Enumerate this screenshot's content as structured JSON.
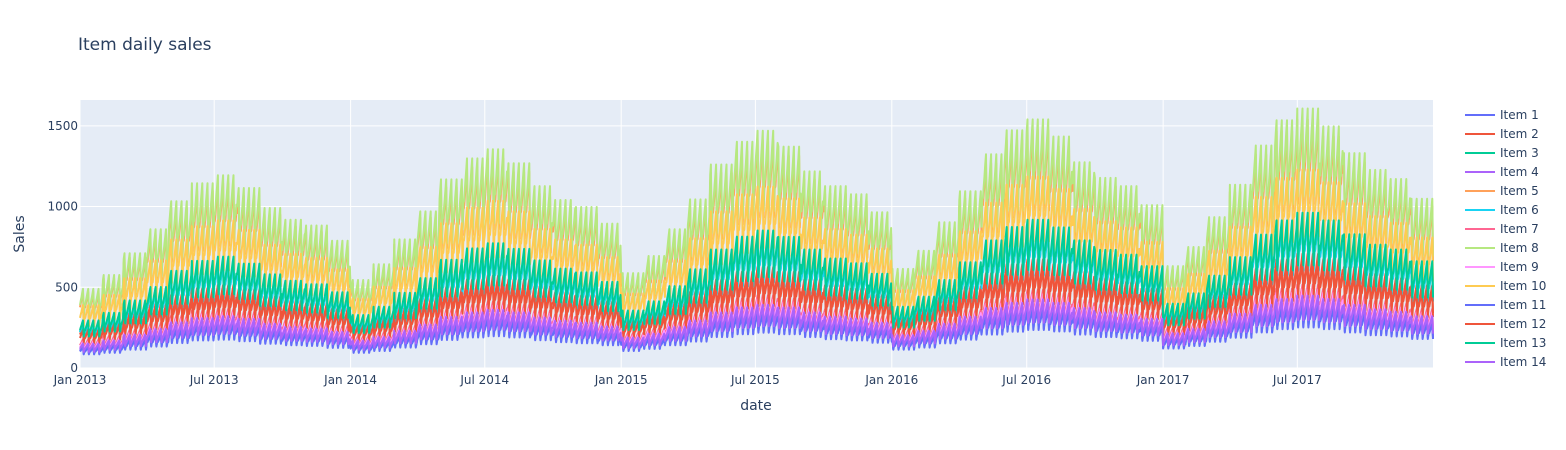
{
  "chart_data": {
    "type": "line",
    "title": "Item daily sales",
    "xlabel": "date",
    "ylabel": "Sales",
    "xlim": [
      "2013-01-01",
      "2017-12-31"
    ],
    "ylim": [
      0,
      1660
    ],
    "x_ticks": [
      "Jan 2013",
      "Jul 2013",
      "Jan 2014",
      "Jul 2014",
      "Jan 2015",
      "Jul 2015",
      "Jan 2016",
      "Jul 2016",
      "Jan 2017",
      "Jul 2017"
    ],
    "y_ticks": [
      0,
      500,
      1000,
      1500
    ],
    "grid": true,
    "legend_position": "right",
    "plot_background": "#e5ecf6",
    "weekly_pattern": [
      0.78,
      0.93,
      0.94,
      1.0,
      1.06,
      1.12,
      1.18
    ],
    "series": [
      {
        "name": "Item 1",
        "color": "#636efa",
        "values": [
          112,
          125,
          150,
          175,
          205,
          225,
          232,
          218,
          198,
          185,
          180,
          165,
          125,
          140,
          168,
          195,
          230,
          250,
          262,
          250,
          228,
          210,
          202,
          185,
          140,
          155,
          185,
          215,
          250,
          272,
          285,
          272,
          250,
          232,
          222,
          205,
          150,
          168,
          200,
          230,
          270,
          295,
          310,
          295,
          272,
          250,
          240,
          220,
          160,
          180,
          215,
          245,
          285,
          312,
          330,
          315,
          290,
          270,
          260,
          240
        ]
      },
      {
        "name": "Item 2",
        "color": "#ef553b",
        "values": [
          220,
          248,
          290,
          335,
          385,
          420,
          435,
          412,
          375,
          352,
          340,
          312,
          240,
          268,
          315,
          365,
          425,
          465,
          485,
          465,
          428,
          398,
          382,
          350,
          262,
          292,
          345,
          400,
          465,
          505,
          530,
          505,
          465,
          435,
          418,
          385,
          280,
          312,
          370,
          428,
          498,
          545,
          570,
          545,
          505,
          472,
          452,
          418,
          292,
          325,
          385,
          445,
          520,
          570,
          600,
          572,
          530,
          495,
          472,
          435
        ]
      },
      {
        "name": "Item 3",
        "color": "#00cc96",
        "values": [
          240,
          278,
          340,
          405,
          485,
          535,
          555,
          520,
          468,
          435,
          420,
          380,
          265,
          305,
          375,
          448,
          540,
          595,
          620,
          592,
          535,
          495,
          475,
          428,
          290,
          335,
          410,
          492,
          592,
          655,
          685,
          652,
          590,
          545,
          522,
          470,
          312,
          360,
          442,
          530,
          640,
          705,
          740,
          702,
          638,
          590,
          565,
          510,
          328,
          380,
          465,
          560,
          672,
          742,
          780,
          740,
          672,
          620,
          595,
          535
        ]
      },
      {
        "name": "Item 4",
        "color": "#ab63fa",
        "values": [
          120,
          135,
          162,
          190,
          222,
          242,
          252,
          238,
          215,
          200,
          195,
          178,
          135,
          152,
          180,
          210,
          248,
          270,
          282,
          270,
          245,
          228,
          218,
          200,
          150,
          168,
          200,
          232,
          272,
          295,
          310,
          295,
          270,
          250,
          240,
          220,
          162,
          182,
          215,
          250,
          292,
          318,
          335,
          318,
          292,
          270,
          258,
          238,
          172,
          192,
          228,
          265,
          310,
          338,
          355,
          338,
          310,
          285,
          272,
          250
        ]
      },
      {
        "name": "Item 5",
        "color": "#ffa15a",
        "values": [
          400,
          470,
          580,
          700,
          840,
          930,
          970,
          905,
          805,
          745,
          715,
          640,
          445,
          525,
          650,
          790,
          950,
          1055,
          1100,
          1030,
          915,
          845,
          810,
          725,
          480,
          565,
          700,
          850,
          1025,
          1140,
          1195,
          1115,
          990,
          915,
          875,
          785,
          500,
          590,
          735,
          890,
          1075,
          1195,
          1250,
          1165,
          1035,
          955,
          915,
          820,
          515,
          610,
          760,
          925,
          1120,
          1245,
          1305,
          1215,
          1080,
          995,
          950,
          850
        ]
      },
      {
        "name": "Item 6",
        "color": "#19d3f3",
        "values": [
          235,
          272,
          335,
          400,
          480,
          530,
          550,
          515,
          462,
          430,
          415,
          375,
          260,
          300,
          370,
          442,
          532,
          588,
          612,
          585,
          528,
          488,
          470,
          422,
          285,
          330,
          405,
          485,
          585,
          648,
          678,
          645,
          582,
          538,
          515,
          465,
          305,
          355,
          435,
          522,
          632,
          698,
          732,
          695,
          630,
          582,
          558,
          505,
          320,
          372,
          458,
          552,
          665,
          735,
          772,
          732,
          665,
          612,
          588,
          528
        ]
      },
      {
        "name": "Item 7",
        "color": "#ff6692",
        "values": [
          150,
          168,
          200,
          235,
          275,
          300,
          312,
          295,
          268,
          250,
          242,
          220,
          168,
          188,
          222,
          260,
          305,
          332,
          348,
          332,
          302,
          282,
          270,
          248,
          185,
          208,
          245,
          285,
          335,
          365,
          382,
          365,
          332,
          308,
          295,
          272,
          198,
          222,
          262,
          305,
          360,
          392,
          410,
          392,
          358,
          332,
          318,
          292,
          210,
          235,
          280,
          325,
          382,
          418,
          438,
          418,
          382,
          352,
          338,
          310
        ]
      },
      {
        "name": "Item 8",
        "color": "#b6e880",
        "values": [
          415,
          488,
          602,
          728,
          875,
          970,
          1012,
          945,
          840,
          778,
          748,
          668,
          462,
          545,
          675,
          822,
          990,
          1100,
          1148,
          1075,
          955,
          882,
          845,
          758,
          498,
          588,
          728,
          885,
          1068,
          1188,
          1245,
          1162,
          1032,
          955,
          912,
          818,
          520,
          615,
          765,
          928,
          1122,
          1248,
          1305,
          1215,
          1080,
          998,
          955,
          855,
          535,
          635,
          792,
          962,
          1168,
          1300,
          1362,
          1268,
          1128,
          1040,
          992,
          888
        ]
      },
      {
        "name": "Item 9",
        "color": "#ff97ff",
        "values": [
          138,
          155,
          185,
          218,
          258,
          282,
          292,
          275,
          250,
          232,
          225,
          205,
          155,
          175,
          208,
          245,
          288,
          315,
          328,
          312,
          285,
          265,
          255,
          232,
          172,
          195,
          230,
          268,
          315,
          345,
          360,
          345,
          312,
          290,
          278,
          255,
          185,
          208,
          248,
          288,
          338,
          370,
          388,
          370,
          338,
          312,
          298,
          275,
          195,
          220,
          262,
          305,
          360,
          395,
          412,
          395,
          360,
          332,
          318,
          292
        ]
      },
      {
        "name": "Item 10",
        "color": "#fecb52",
        "values": [
          330,
          385,
          472,
          565,
          675,
          745,
          775,
          725,
          648,
          600,
          578,
          518,
          365,
          428,
          525,
          635,
          760,
          842,
          878,
          822,
          730,
          675,
          648,
          582,
          392,
          460,
          565,
          682,
          822,
          912,
          952,
          890,
          790,
          730,
          700,
          628,
          410,
          482,
          595,
          718,
          868,
          962,
          1005,
          940,
          835,
          770,
          738,
          662,
          420,
          495,
          615,
          742,
          898,
          998,
          1042,
          975,
          865,
          798,
          762,
          685
        ]
      },
      {
        "name": "Item 11",
        "color": "#636efa",
        "values": [
          108,
          120,
          145,
          170,
          198,
          218,
          225,
          212,
          192,
          180,
          175,
          160,
          120,
          135,
          162,
          188,
          222,
          242,
          252,
          242,
          220,
          205,
          196,
          180,
          135,
          152,
          180,
          210,
          245,
          268,
          280,
          268,
          245,
          228,
          218,
          200,
          145,
          162,
          195,
          225,
          265,
          288,
          302,
          290,
          265,
          245,
          235,
          215,
          155,
          175,
          208,
          240,
          282,
          308,
          322,
          308,
          282,
          260,
          250,
          230
        ]
      },
      {
        "name": "Item 12",
        "color": "#ef553b",
        "values": [
          198,
          225,
          265,
          308,
          355,
          388,
          402,
          382,
          348,
          325,
          315,
          290,
          218,
          245,
          290,
          338,
          395,
          432,
          450,
          432,
          398,
          370,
          355,
          325,
          240,
          268,
          318,
          370,
          432,
          472,
          492,
          472,
          435,
          405,
          390,
          358,
          255,
          288,
          342,
          398,
          465,
          508,
          530,
          508,
          470,
          438,
          422,
          388,
          268,
          300,
          358,
          415,
          485,
          532,
          558,
          532,
          492,
          460,
          440,
          405
        ]
      },
      {
        "name": "Item 13",
        "color": "#00cc96",
        "values": [
          250,
          290,
          355,
          425,
          510,
          562,
          585,
          548,
          492,
          458,
          440,
          398,
          278,
          322,
          395,
          472,
          568,
          628,
          655,
          625,
          565,
          522,
          502,
          452,
          302,
          350,
          430,
          518,
          622,
          690,
          722,
          688,
          622,
          575,
          550,
          495,
          322,
          375,
          462,
          555,
          670,
          740,
          778,
          738,
          670,
          620,
          595,
          535,
          338,
          392,
          485,
          582,
          700,
          775,
          815,
          775,
          702,
          648,
          622,
          560
        ]
      },
      {
        "name": "Item 14",
        "color": "#ab63fa",
        "values": [
          128,
          145,
          175,
          205,
          240,
          262,
          272,
          258,
          232,
          215,
          208,
          190,
          145,
          162,
          195,
          228,
          268,
          292,
          305,
          292,
          265,
          248,
          238,
          218,
          160,
          180,
          215,
          250,
          292,
          318,
          332,
          318,
          292,
          270,
          260,
          238,
          172,
          195,
          232,
          270,
          315,
          342,
          360,
          342,
          315,
          292,
          280,
          258,
          182,
          205,
          245,
          285,
          332,
          362,
          380,
          362,
          332,
          308,
          295,
          272
        ]
      }
    ]
  }
}
